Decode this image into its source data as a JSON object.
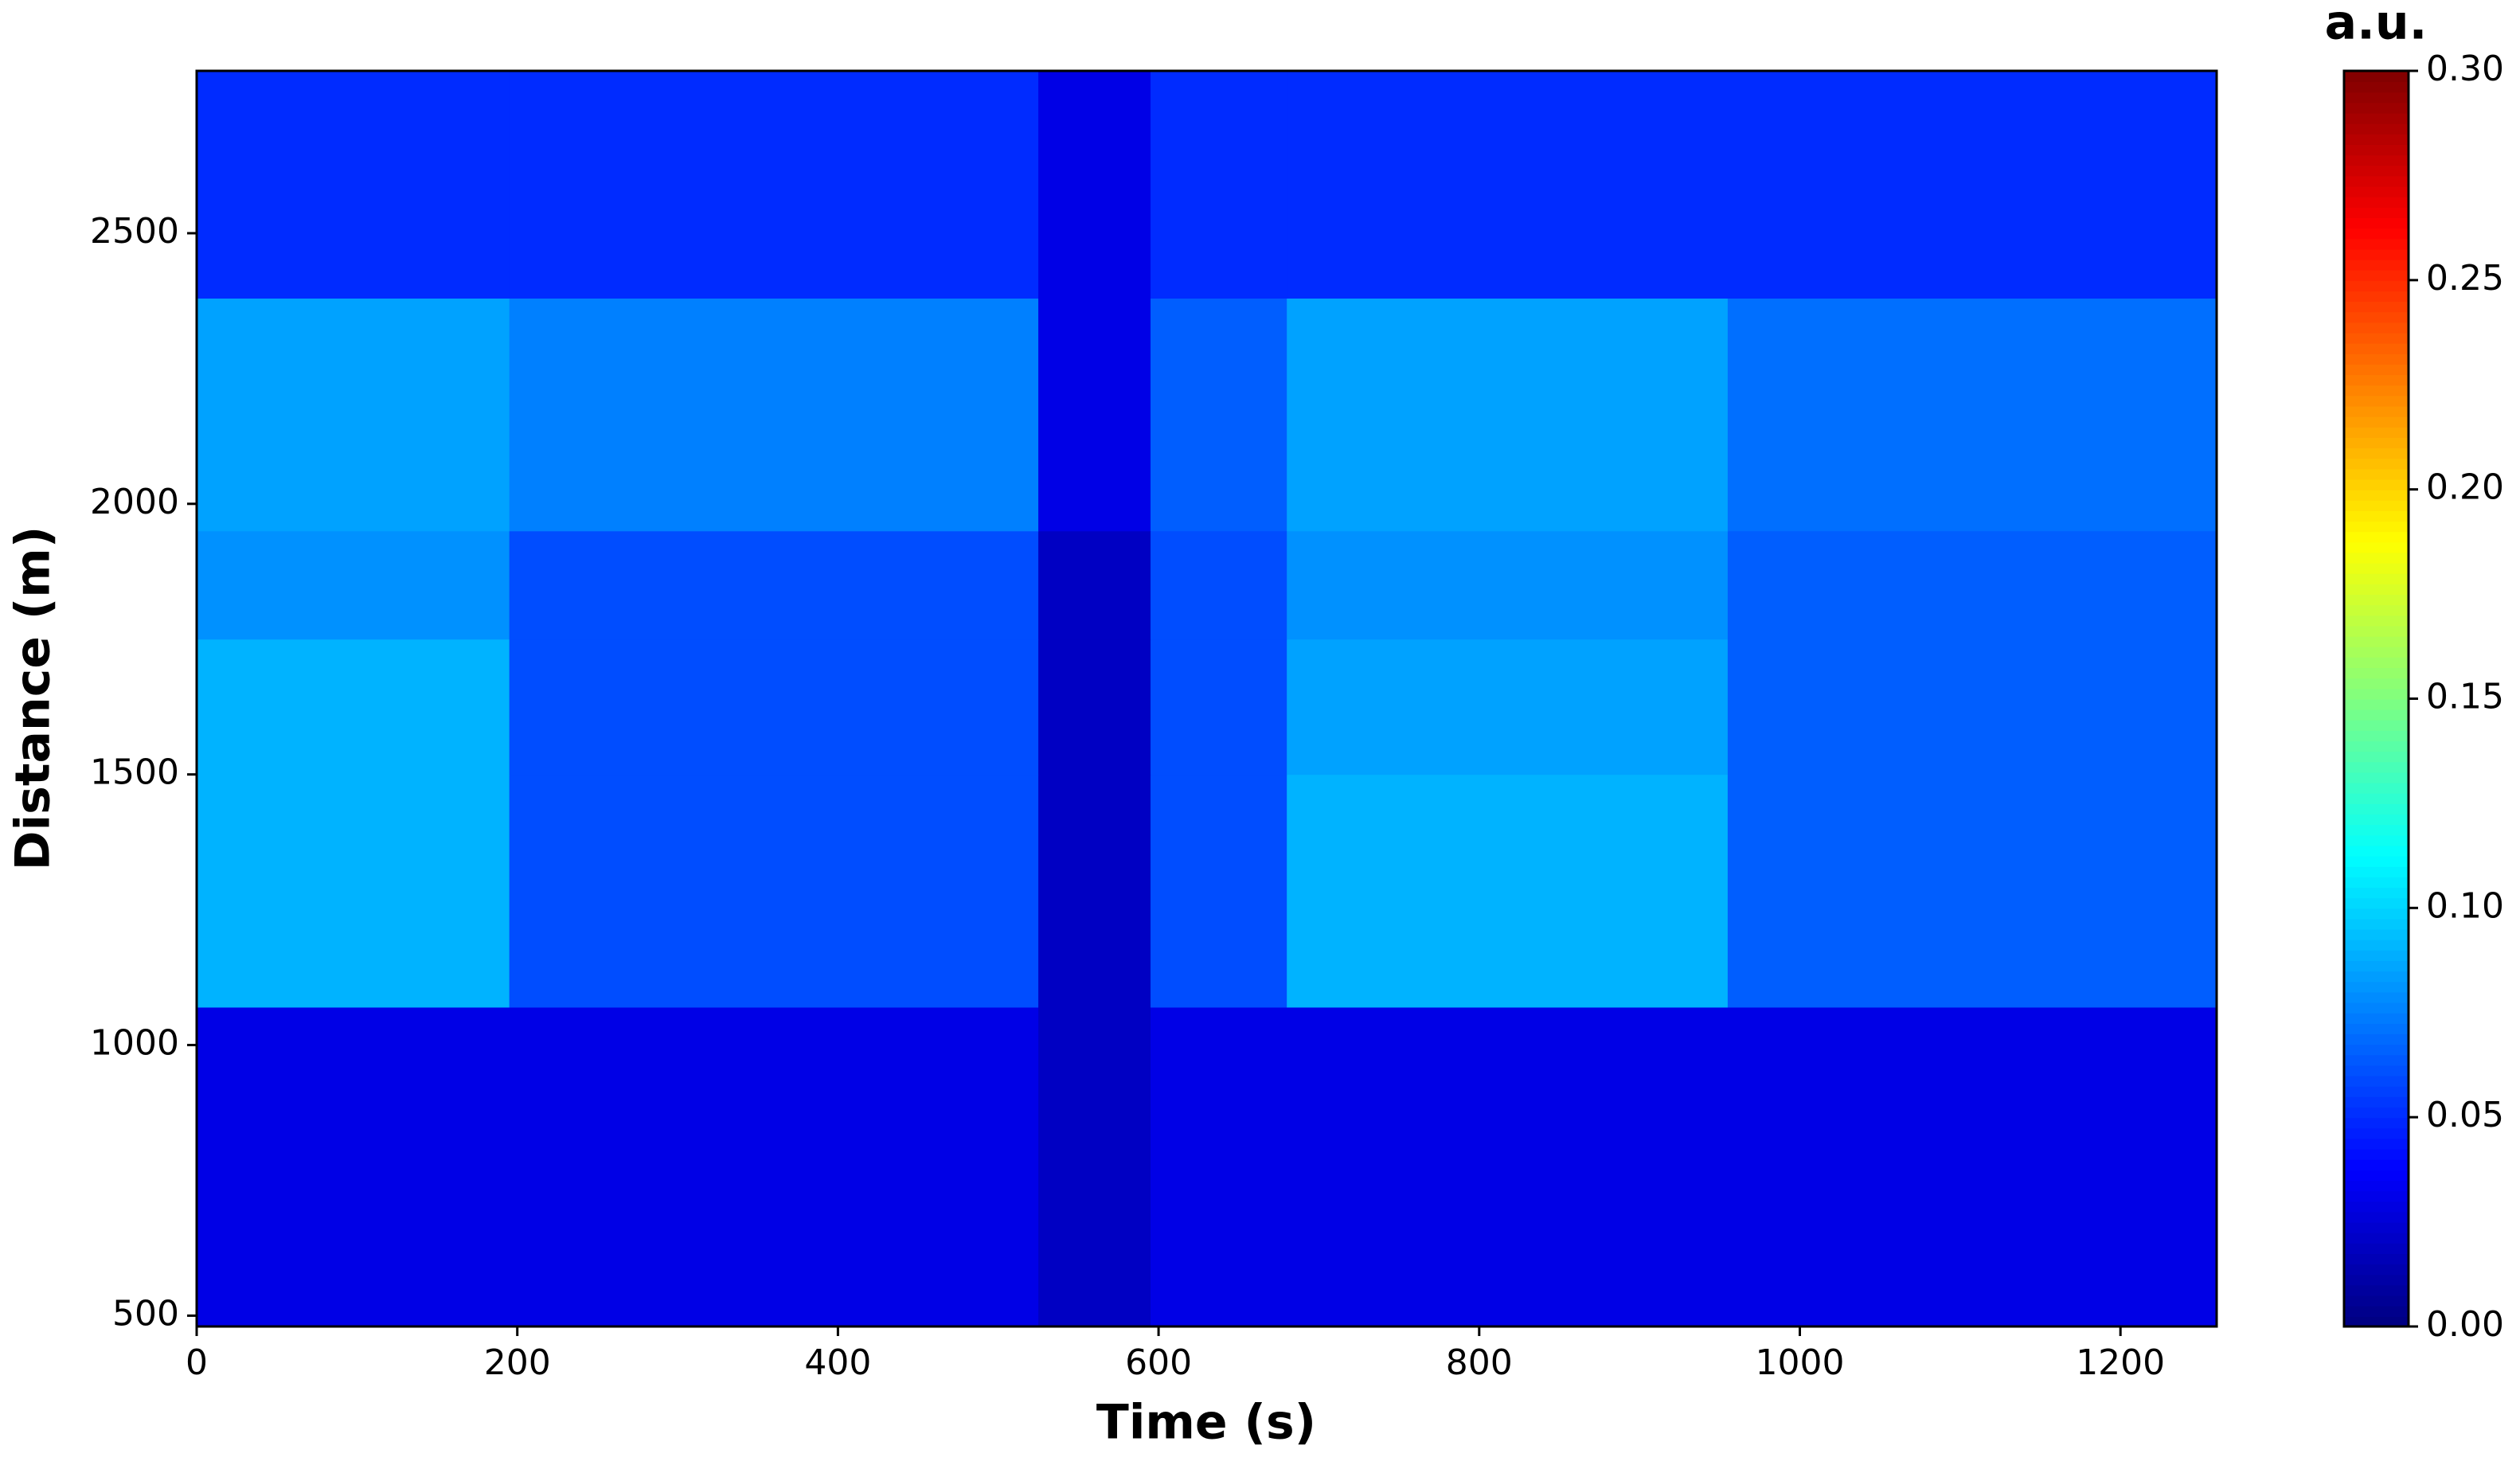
{
  "chart_data": {
    "type": "heatmap",
    "x_label": "Time (s)",
    "y_label": "Distance (m)",
    "colorbar_label": "a.u.",
    "colormap": "jet",
    "x": [
      0,
      195,
      525,
      595,
      680,
      955,
      1260
    ],
    "y": [
      480,
      1070,
      1500,
      1750,
      1950,
      2380,
      2800
    ],
    "z": [
      [
        0.03,
        0.03,
        0.02,
        0.03,
        0.03,
        0.03
      ],
      [
        0.09,
        0.06,
        0.02,
        0.06,
        0.09,
        0.065
      ],
      [
        0.09,
        0.06,
        0.02,
        0.06,
        0.085,
        0.065
      ],
      [
        0.08,
        0.06,
        0.02,
        0.06,
        0.08,
        0.065
      ],
      [
        0.085,
        0.075,
        0.03,
        0.065,
        0.085,
        0.07
      ],
      [
        0.05,
        0.05,
        0.03,
        0.05,
        0.05,
        0.05
      ]
    ],
    "xlim": [
      0,
      1260
    ],
    "ylim": [
      480,
      2800
    ],
    "xticks": [
      0,
      200,
      400,
      600,
      800,
      1000,
      1200
    ],
    "yticks": [
      500,
      1000,
      1500,
      2000,
      2500
    ],
    "zlim": [
      0,
      0.3
    ],
    "zticks": [
      {
        "value": 0,
        "label": "0.00"
      },
      {
        "value": 0.05,
        "label": "0.05"
      },
      {
        "value": 0.1,
        "label": "0.10"
      },
      {
        "value": 0.15,
        "label": "0.15"
      },
      {
        "value": 0.2,
        "label": "0.20"
      },
      {
        "value": 0.25,
        "label": "0.25"
      },
      {
        "value": 0.3,
        "label": "0.30"
      }
    ]
  }
}
